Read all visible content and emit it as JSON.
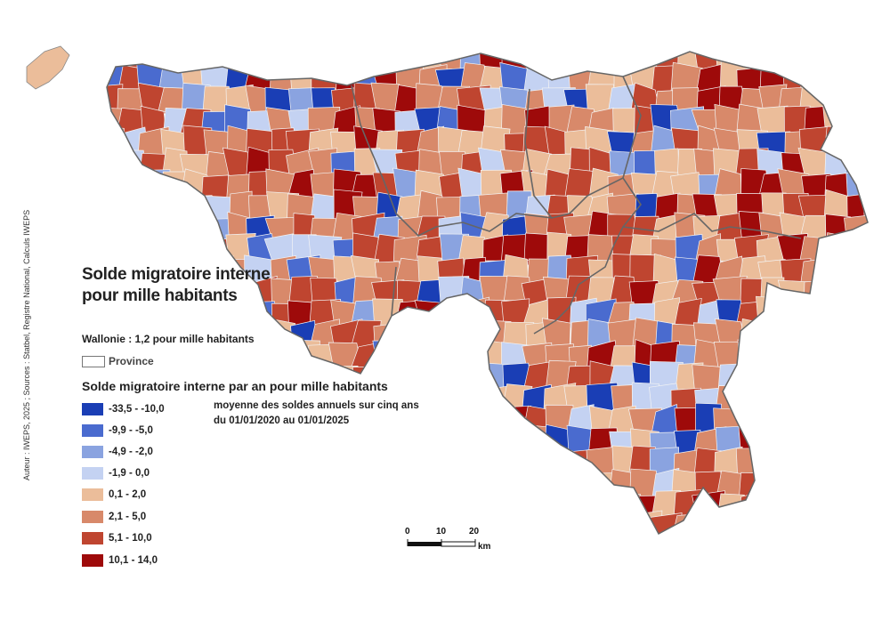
{
  "credit": "Auteur : IWEPS, 2025 ; Sources : Statbel, Registre National, Calculs IWEPS",
  "title_line1": "Solde migratoire interne",
  "title_line2": "pour mille habitants",
  "wallonie_avg": "Wallonie : 1,2 pour mille habitants",
  "province_label": "Province",
  "legend_title": "Solde migratoire interne par an pour mille habitants",
  "legend_sub1": "moyenne des soldes annuels sur cinq ans",
  "legend_sub2": "du 01/01/2020 au 01/01/2025",
  "legend": [
    {
      "label": "-33,5 - -10,0",
      "color": "#1a3eb5"
    },
    {
      "label": "-9,9 - -5,0",
      "color": "#4a6bcf"
    },
    {
      "label": "-4,9 - -2,0",
      "color": "#8aa3e0"
    },
    {
      "label": "-1,9 - 0,0",
      "color": "#c4d2f2"
    },
    {
      "label": "0,1 - 2,0",
      "color": "#ebbd9a"
    },
    {
      "label": "2,1 - 5,0",
      "color": "#d8896a"
    },
    {
      "label": "5,1 - 10,0",
      "color": "#bf4530"
    },
    {
      "label": "10,1 - 14,0",
      "color": "#9e0a0a"
    }
  ],
  "scale": {
    "t0": "0",
    "t1": "10",
    "t2": "20",
    "unit": "km"
  }
}
